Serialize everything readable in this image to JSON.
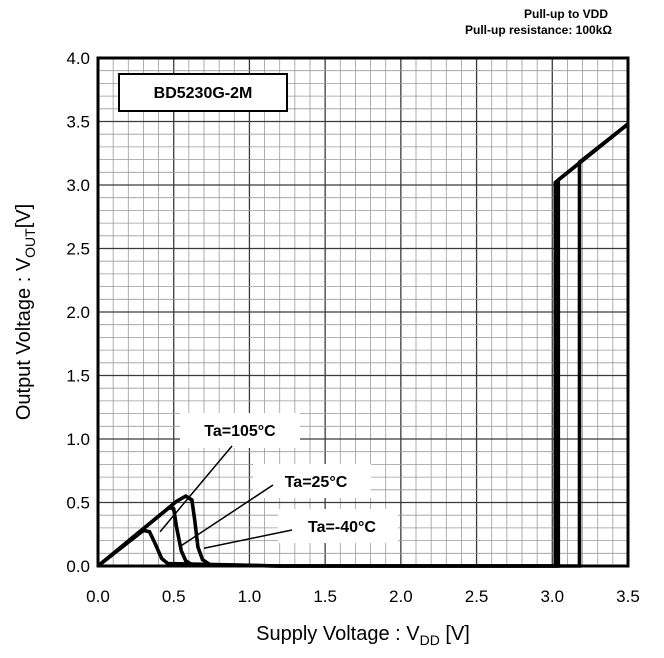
{
  "chart_data": {
    "type": "line",
    "notes": [
      "Pull-up to VDD",
      "Pull-up resistance: 100kΩ"
    ],
    "device_label": "BD5230G-2M",
    "xlabel": {
      "main": "Supply Voltage : V",
      "sub": "DD",
      "unit": " [V]"
    },
    "ylabel": {
      "main": "Output Voltage : V",
      "sub": "OUT",
      "unit": "[V]"
    },
    "xlim": [
      0,
      3.5
    ],
    "ylim": [
      0,
      4.0
    ],
    "x_ticks": [
      "0.0",
      "0.5",
      "1.0",
      "1.5",
      "2.0",
      "2.5",
      "3.0",
      "3.5"
    ],
    "y_ticks": [
      "0.0",
      "0.5",
      "1.0",
      "1.5",
      "2.0",
      "2.5",
      "3.0",
      "3.5",
      "4.0"
    ],
    "grid": true,
    "series": [
      {
        "name": "Ta=105°C",
        "points": [
          [
            0,
            0
          ],
          [
            0.3,
            0.28
          ],
          [
            0.34,
            0.27
          ],
          [
            0.38,
            0.17
          ],
          [
            0.42,
            0.06
          ],
          [
            0.46,
            0.02
          ],
          [
            1.2,
            0
          ],
          [
            3.02,
            0
          ],
          [
            3.02,
            3.02
          ],
          [
            3.5,
            3.48
          ]
        ]
      },
      {
        "name": "Ta=25°C",
        "points": [
          [
            0,
            0
          ],
          [
            0.47,
            0.46
          ],
          [
            0.5,
            0.45
          ],
          [
            0.52,
            0.3
          ],
          [
            0.55,
            0.12
          ],
          [
            0.58,
            0.04
          ],
          [
            0.62,
            0.01
          ],
          [
            1.2,
            0
          ],
          [
            3.04,
            0
          ],
          [
            3.04,
            3.04
          ],
          [
            3.5,
            3.48
          ]
        ]
      },
      {
        "name": "Ta=-40°C",
        "points": [
          [
            0,
            0
          ],
          [
            0.52,
            0.51
          ],
          [
            0.58,
            0.55
          ],
          [
            0.62,
            0.52
          ],
          [
            0.64,
            0.35
          ],
          [
            0.66,
            0.15
          ],
          [
            0.69,
            0.05
          ],
          [
            0.74,
            0.01
          ],
          [
            1.2,
            0
          ],
          [
            3.18,
            0
          ],
          [
            3.18,
            3.18
          ],
          [
            3.5,
            3.48
          ]
        ]
      }
    ],
    "annotations": [
      {
        "text": "Ta=105°C",
        "point_to": [
          0.41,
          0.27
        ]
      },
      {
        "text": "Ta=25°C",
        "point_to": [
          0.55,
          0.16
        ]
      },
      {
        "text": "Ta=-40°C",
        "point_to": [
          0.7,
          0.14
        ]
      }
    ]
  }
}
